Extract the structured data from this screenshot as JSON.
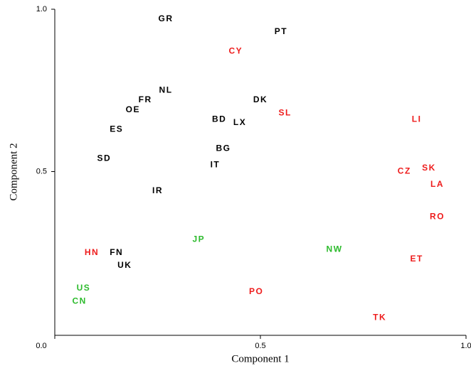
{
  "chart_data": {
    "type": "scatter",
    "xlabel": "Component 1",
    "ylabel": "Component 2",
    "xlim": [
      0,
      1
    ],
    "ylim": [
      0,
      1
    ],
    "xticks": [
      {
        "value": 0,
        "label": "0.0"
      },
      0.5,
      {
        "value": 1,
        "label": "1.0"
      }
    ],
    "yticks": [
      0.5,
      {
        "value": 1,
        "label": "1.0"
      }
    ],
    "points": [
      {
        "label": "GR",
        "x": 0.27,
        "y": 0.97,
        "color": "#000000"
      },
      {
        "label": "PT",
        "x": 0.55,
        "y": 0.93,
        "color": "#000000"
      },
      {
        "label": "CY",
        "x": 0.44,
        "y": 0.87,
        "color": "#ee1c1c"
      },
      {
        "label": "NL",
        "x": 0.27,
        "y": 0.75,
        "color": "#000000"
      },
      {
        "label": "FR",
        "x": 0.22,
        "y": 0.72,
        "color": "#000000"
      },
      {
        "label": "OE",
        "x": 0.19,
        "y": 0.69,
        "color": "#000000"
      },
      {
        "label": "DK",
        "x": 0.5,
        "y": 0.72,
        "color": "#000000"
      },
      {
        "label": "SL",
        "x": 0.56,
        "y": 0.68,
        "color": "#ee1c1c"
      },
      {
        "label": "BD",
        "x": 0.4,
        "y": 0.66,
        "color": "#000000"
      },
      {
        "label": "LX",
        "x": 0.45,
        "y": 0.65,
        "color": "#000000"
      },
      {
        "label": "LI",
        "x": 0.88,
        "y": 0.66,
        "color": "#ee1c1c"
      },
      {
        "label": "ES",
        "x": 0.15,
        "y": 0.63,
        "color": "#000000"
      },
      {
        "label": "BG",
        "x": 0.41,
        "y": 0.57,
        "color": "#000000"
      },
      {
        "label": "IT",
        "x": 0.39,
        "y": 0.52,
        "color": "#000000"
      },
      {
        "label": "SD",
        "x": 0.12,
        "y": 0.54,
        "color": "#000000"
      },
      {
        "label": "CZ",
        "x": 0.85,
        "y": 0.5,
        "color": "#ee1c1c"
      },
      {
        "label": "SK",
        "x": 0.91,
        "y": 0.51,
        "color": "#ee1c1c"
      },
      {
        "label": "LA",
        "x": 0.93,
        "y": 0.46,
        "color": "#ee1c1c"
      },
      {
        "label": "IR",
        "x": 0.25,
        "y": 0.44,
        "color": "#000000"
      },
      {
        "label": "RO",
        "x": 0.93,
        "y": 0.36,
        "color": "#ee1c1c"
      },
      {
        "label": "JP",
        "x": 0.35,
        "y": 0.29,
        "color": "#2dbb2d"
      },
      {
        "label": "HN",
        "x": 0.09,
        "y": 0.25,
        "color": "#ee1c1c"
      },
      {
        "label": "FN",
        "x": 0.15,
        "y": 0.25,
        "color": "#000000"
      },
      {
        "label": "NW",
        "x": 0.68,
        "y": 0.26,
        "color": "#2dbb2d"
      },
      {
        "label": "ET",
        "x": 0.88,
        "y": 0.23,
        "color": "#ee1c1c"
      },
      {
        "label": "UK",
        "x": 0.17,
        "y": 0.21,
        "color": "#000000"
      },
      {
        "label": "US",
        "x": 0.07,
        "y": 0.14,
        "color": "#2dbb2d"
      },
      {
        "label": "PO",
        "x": 0.49,
        "y": 0.13,
        "color": "#ee1c1c"
      },
      {
        "label": "CN",
        "x": 0.06,
        "y": 0.1,
        "color": "#2dbb2d"
      },
      {
        "label": "TK",
        "x": 0.79,
        "y": 0.05,
        "color": "#ee1c1c"
      }
    ]
  }
}
